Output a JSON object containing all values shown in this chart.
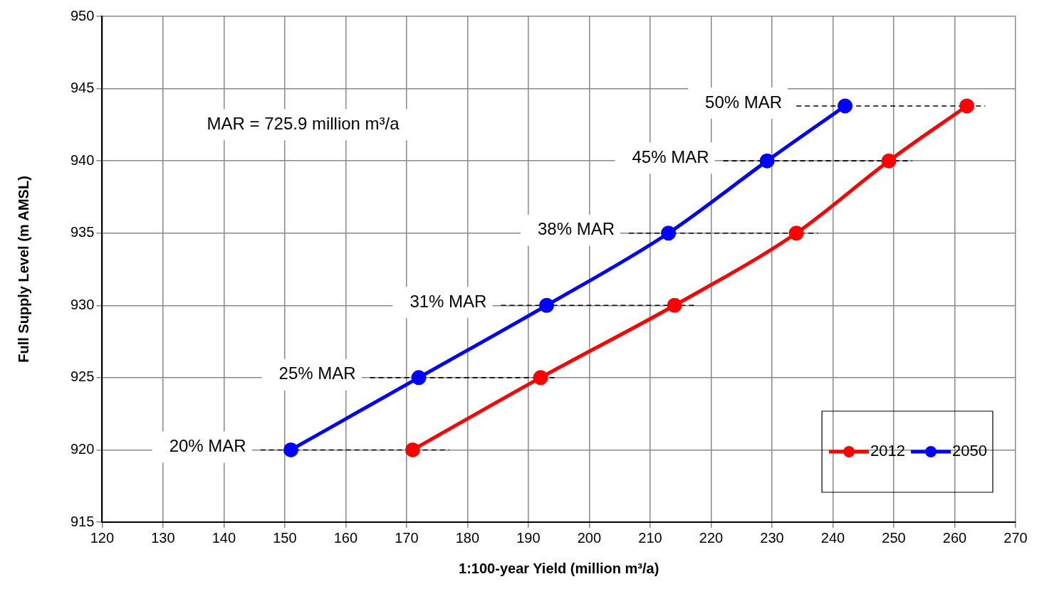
{
  "chart_data": {
    "type": "line",
    "xlabel": "1:100-year Yield (million m³/a)",
    "ylabel": "Full Supply Level (m AMSL)",
    "xlim": [
      120,
      270
    ],
    "xticks": [
      120,
      130,
      140,
      150,
      160,
      170,
      180,
      190,
      200,
      210,
      220,
      230,
      240,
      250,
      260,
      270
    ],
    "ylim": [
      915,
      950
    ],
    "yticks": [
      915,
      920,
      925,
      930,
      935,
      940,
      945,
      950
    ],
    "grid": true,
    "legend": "bottom right",
    "marker": "circle",
    "line_style": "solid",
    "series": [
      {
        "name": "2012",
        "color": "#ff0000",
        "x": [
          171,
          192,
          214,
          234,
          249.2,
          262
        ],
        "values": [
          920,
          925,
          930,
          935,
          940,
          943.8
        ]
      },
      {
        "name": "2050",
        "color": "#0000ff",
        "x": [
          151,
          172,
          193,
          213,
          229.2,
          242
        ],
        "values": [
          920,
          925,
          930,
          935,
          940,
          943.8
        ]
      },
      {
        "name": "20% MAR",
        "color": "#000000",
        "marker": "none",
        "line_style": "dashed",
        "x": [
          146,
          177
        ],
        "values": [
          920,
          920
        ]
      },
      {
        "name": "25% MAR",
        "color": "#000000",
        "marker": "none",
        "line_style": "dashed",
        "x": [
          164,
          194.5
        ],
        "values": [
          925,
          925
        ]
      },
      {
        "name": "31% MAR",
        "color": "#000000",
        "marker": "none",
        "line_style": "dashed",
        "x": [
          185.5,
          217.5
        ],
        "values": [
          930,
          930
        ]
      },
      {
        "name": "38% MAR",
        "color": "#000000",
        "marker": "none",
        "line_style": "dashed",
        "x": [
          206.5,
          237.5
        ],
        "values": [
          935,
          935
        ]
      },
      {
        "name": "45% MAR",
        "color": "#000000",
        "marker": "none",
        "line_style": "dashed",
        "x": [
          222,
          253
        ],
        "values": [
          940,
          940
        ]
      },
      {
        "name": "50% MAR",
        "color": "#000000",
        "marker": "none",
        "line_style": "dashed",
        "x": [
          234,
          265
        ],
        "values": [
          943.8,
          943.8
        ]
      }
    ],
    "annotations": [
      "MAR = 725.9 million m³/a"
    ]
  }
}
